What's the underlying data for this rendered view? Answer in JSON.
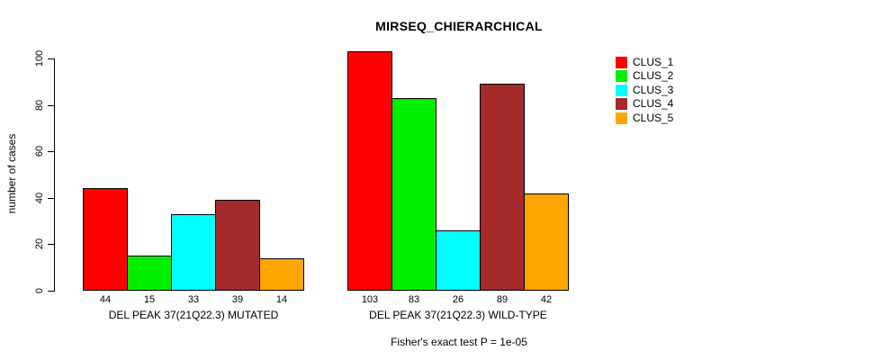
{
  "chart_data": {
    "type": "bar",
    "title": "MIRSEQ_CHIERARCHICAL",
    "ylabel": "number of cases",
    "xlabel": "",
    "yticks": [
      0,
      20,
      40,
      60,
      80,
      100
    ],
    "ylim": [
      0,
      110
    ],
    "grid": false,
    "legend_position": "right-outside",
    "value_labels_shown": true,
    "categories": [
      "DEL PEAK 37(21Q22.3) MUTATED",
      "DEL PEAK 37(21Q22.3) WILD-TYPE"
    ],
    "series": [
      {
        "name": "CLUS_1",
        "color": "#ff0000",
        "values": [
          44,
          103
        ]
      },
      {
        "name": "CLUS_2",
        "color": "#00ee00",
        "values": [
          15,
          83
        ]
      },
      {
        "name": "CLUS_3",
        "color": "#00ffff",
        "values": [
          33,
          26
        ]
      },
      {
        "name": "CLUS_4",
        "color": "#a52a2a",
        "values": [
          39,
          89
        ]
      },
      {
        "name": "CLUS_5",
        "color": "#ffa500",
        "values": [
          14,
          42
        ]
      }
    ],
    "annotation": "Fisher's exact test P = 1e-05"
  },
  "colors": {
    "background": "#ffffff",
    "axis": "#000000",
    "text": "#000000"
  }
}
